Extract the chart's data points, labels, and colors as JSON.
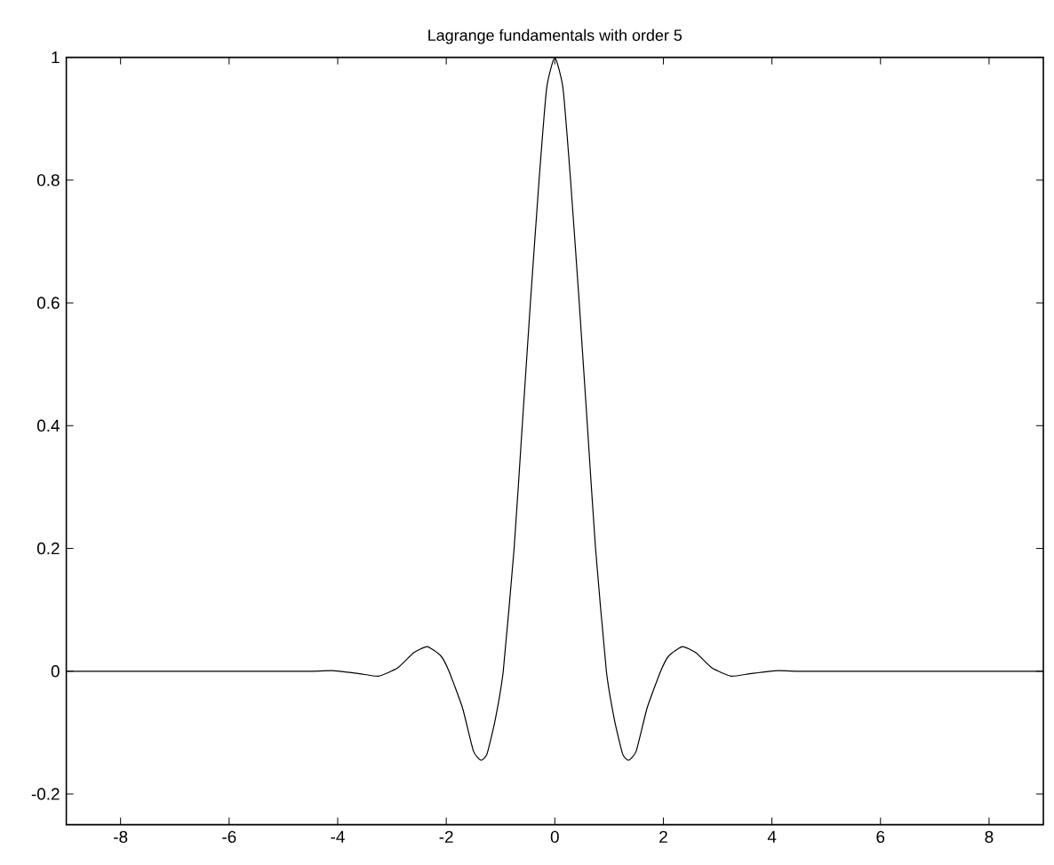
{
  "chart_data": {
    "type": "line",
    "title": "Lagrange fundamentals with order 5",
    "x": [
      -9,
      -6,
      -4.5,
      -4.1,
      -3.6,
      -3.25,
      -2.9,
      -2.6,
      -2.35,
      -2.1,
      -1.95,
      -1.7,
      -1.5,
      -1.36,
      -1.25,
      -1.1,
      -0.95,
      -0.75,
      -0.6,
      -0.45,
      -0.29,
      -0.15,
      0,
      0.15,
      0.29,
      0.45,
      0.6,
      0.75,
      0.95,
      1.1,
      1.25,
      1.36,
      1.5,
      1.7,
      1.95,
      2.1,
      2.35,
      2.6,
      2.9,
      3.25,
      3.6,
      4.1,
      4.5,
      6,
      9
    ],
    "series": [
      {
        "color": "#000000",
        "values": [
          0,
          0,
          0,
          0.001,
          -0.004,
          -0.008,
          0.005,
          0.03,
          0.04,
          0.025,
          0,
          -0.06,
          -0.13,
          -0.145,
          -0.135,
          -0.08,
          0,
          0.2,
          0.4,
          0.6,
          0.8,
          0.95,
          1,
          0.95,
          0.8,
          0.6,
          0.4,
          0.2,
          0,
          -0.08,
          -0.135,
          -0.145,
          -0.13,
          -0.06,
          0,
          0.025,
          0.04,
          0.03,
          0.005,
          -0.008,
          -0.004,
          0.001,
          0,
          0,
          0
        ]
      }
    ],
    "xlim": [
      -9,
      9
    ],
    "ylim": [
      -0.25,
      1
    ],
    "xticks": [
      -8,
      -6,
      -4,
      -2,
      0,
      2,
      4,
      6,
      8
    ],
    "yticks": [
      -0.2,
      0,
      0.2,
      0.4,
      0.6,
      0.8,
      1
    ],
    "grid": false,
    "legend": false,
    "marker": "none",
    "line_style": "solid"
  }
}
